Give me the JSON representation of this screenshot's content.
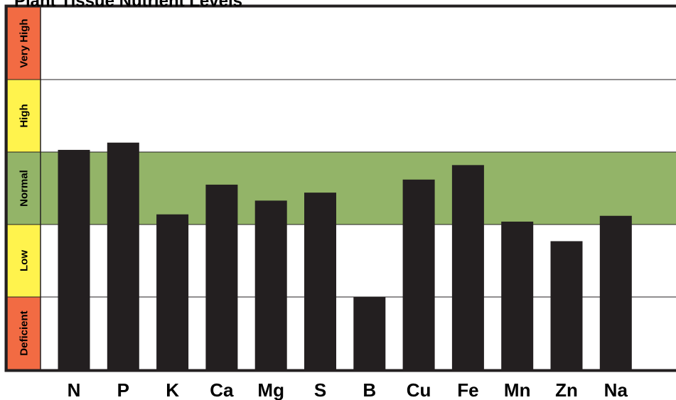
{
  "chart_data": {
    "type": "bar",
    "title": "Plant Tissue Nutrient Levels",
    "categories": [
      "N",
      "P",
      "K",
      "Ca",
      "Mg",
      "S",
      "B",
      "Cu",
      "Fe",
      "Mn",
      "Zn",
      "Na"
    ],
    "values": [
      3.03,
      3.13,
      2.14,
      2.55,
      2.33,
      2.44,
      1.0,
      2.62,
      2.82,
      2.04,
      1.77,
      2.12
    ],
    "ylim": [
      0,
      5
    ],
    "levels": [
      {
        "label": "Deficient",
        "from": 0,
        "to": 1,
        "color": "#f26b43"
      },
      {
        "label": "Low",
        "from": 1,
        "to": 2,
        "color": "#fff34d"
      },
      {
        "label": "Normal",
        "from": 2,
        "to": 3,
        "color": "#93b468"
      },
      {
        "label": "High",
        "from": 3,
        "to": 4,
        "color": "#fff34d"
      },
      {
        "label": "Very High",
        "from": 4,
        "to": 5,
        "color": "#f26b43"
      }
    ],
    "normal_range_highlight": [
      2,
      3
    ],
    "bar_color": "#231f20",
    "grid": true
  }
}
